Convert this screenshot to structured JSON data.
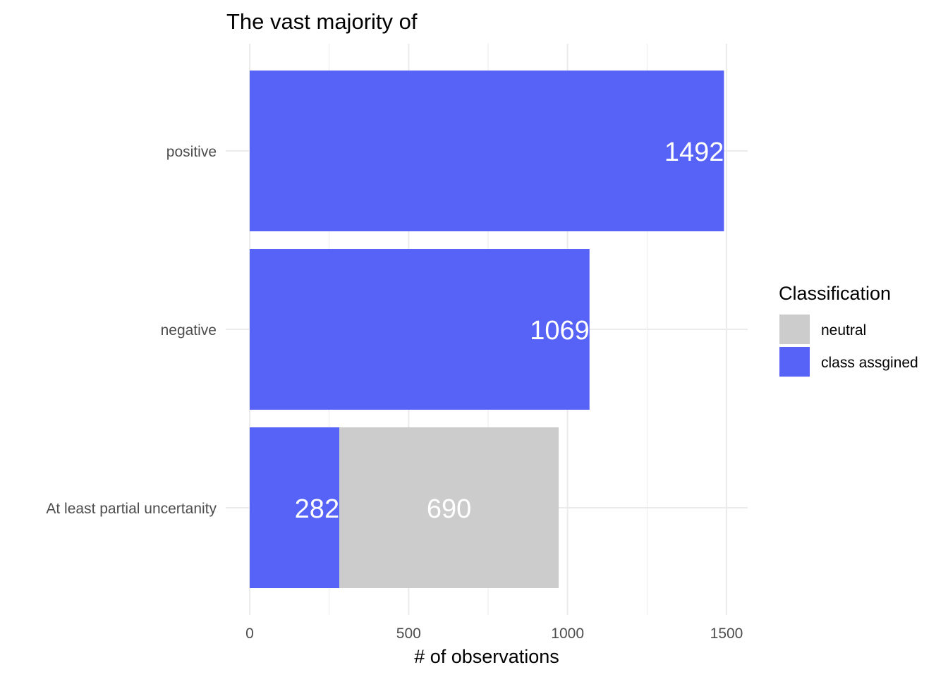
{
  "chart_data": {
    "type": "bar",
    "orientation": "horizontal",
    "stacked": true,
    "title": "The vast majority of",
    "xlabel": "# of observations",
    "ylabel": "",
    "xlim": [
      0,
      1560
    ],
    "x_ticks": [
      0,
      500,
      1000,
      1500
    ],
    "x_minor_ticks": [
      250,
      750,
      1250
    ],
    "grid": true,
    "categories": [
      "positive",
      "negative",
      "At least partial uncertanity"
    ],
    "series": [
      {
        "name": "class assgined",
        "color": "#5763f7",
        "values": [
          1492,
          1069,
          282
        ]
      },
      {
        "name": "neutral",
        "color": "#cccccc",
        "values": [
          0,
          0,
          690
        ]
      }
    ],
    "legend": {
      "title": "Classification",
      "position": "right",
      "entries": [
        {
          "label": "neutral",
          "color": "#cccccc"
        },
        {
          "label": "class assgined",
          "color": "#5763f7"
        }
      ]
    }
  }
}
